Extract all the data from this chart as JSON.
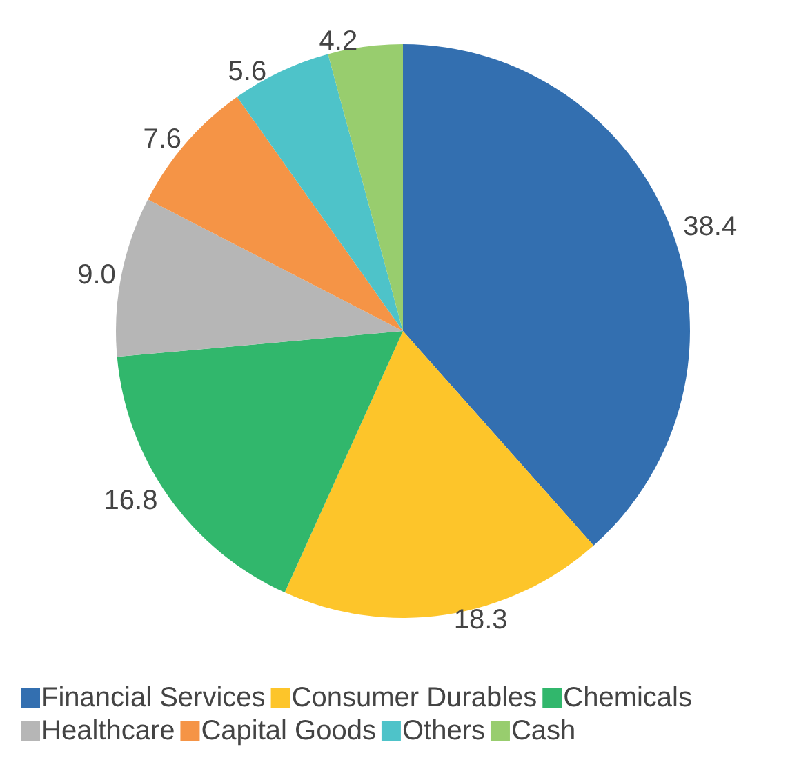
{
  "chart_data": {
    "type": "pie",
    "categories": [
      "Financial Services",
      "Consumer Durables",
      "Chemicals",
      "Healthcare",
      "Capital Goods",
      "Others",
      "Cash"
    ],
    "values": [
      38.4,
      18.3,
      16.8,
      9.0,
      7.6,
      5.6,
      4.2
    ],
    "value_labels": [
      "38.4",
      "18.3",
      "16.8",
      "9.0",
      "7.6",
      "5.6",
      "4.2"
    ],
    "colors": [
      "#336fb0",
      "#fdc52a",
      "#31b76c",
      "#b6b6b6",
      "#f59446",
      "#4ec3c9",
      "#98cd6e"
    ],
    "legend": "bottom"
  }
}
